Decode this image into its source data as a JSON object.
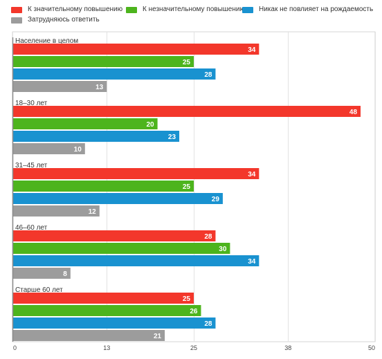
{
  "chart_data": {
    "type": "bar",
    "orientation": "horizontal",
    "title": "",
    "xlabel": "",
    "ylabel": "",
    "categories": [
      "Население в целом",
      "18–30 лет",
      "31–45 лет",
      "46–60 лет",
      "Старше 60 лет"
    ],
    "series": [
      {
        "name": "К значительному повышению",
        "color": "#f3372b",
        "values": [
          34,
          48,
          34,
          28,
          25
        ]
      },
      {
        "name": "К незначительному повышению",
        "color": "#4db41d",
        "values": [
          25,
          20,
          25,
          30,
          26
        ]
      },
      {
        "name": "Никак не повлияет на рождаемость",
        "color": "#1992d0",
        "values": [
          28,
          23,
          29,
          34,
          28
        ]
      },
      {
        "name": "Затрудняюсь ответить",
        "color": "#9c9c9c",
        "values": [
          13,
          10,
          12,
          8,
          21
        ]
      }
    ],
    "xlim": [
      0,
      50
    ],
    "x_ticks": [
      0,
      13,
      25,
      38,
      50
    ],
    "grid": "vertical",
    "legend_position": "top"
  }
}
